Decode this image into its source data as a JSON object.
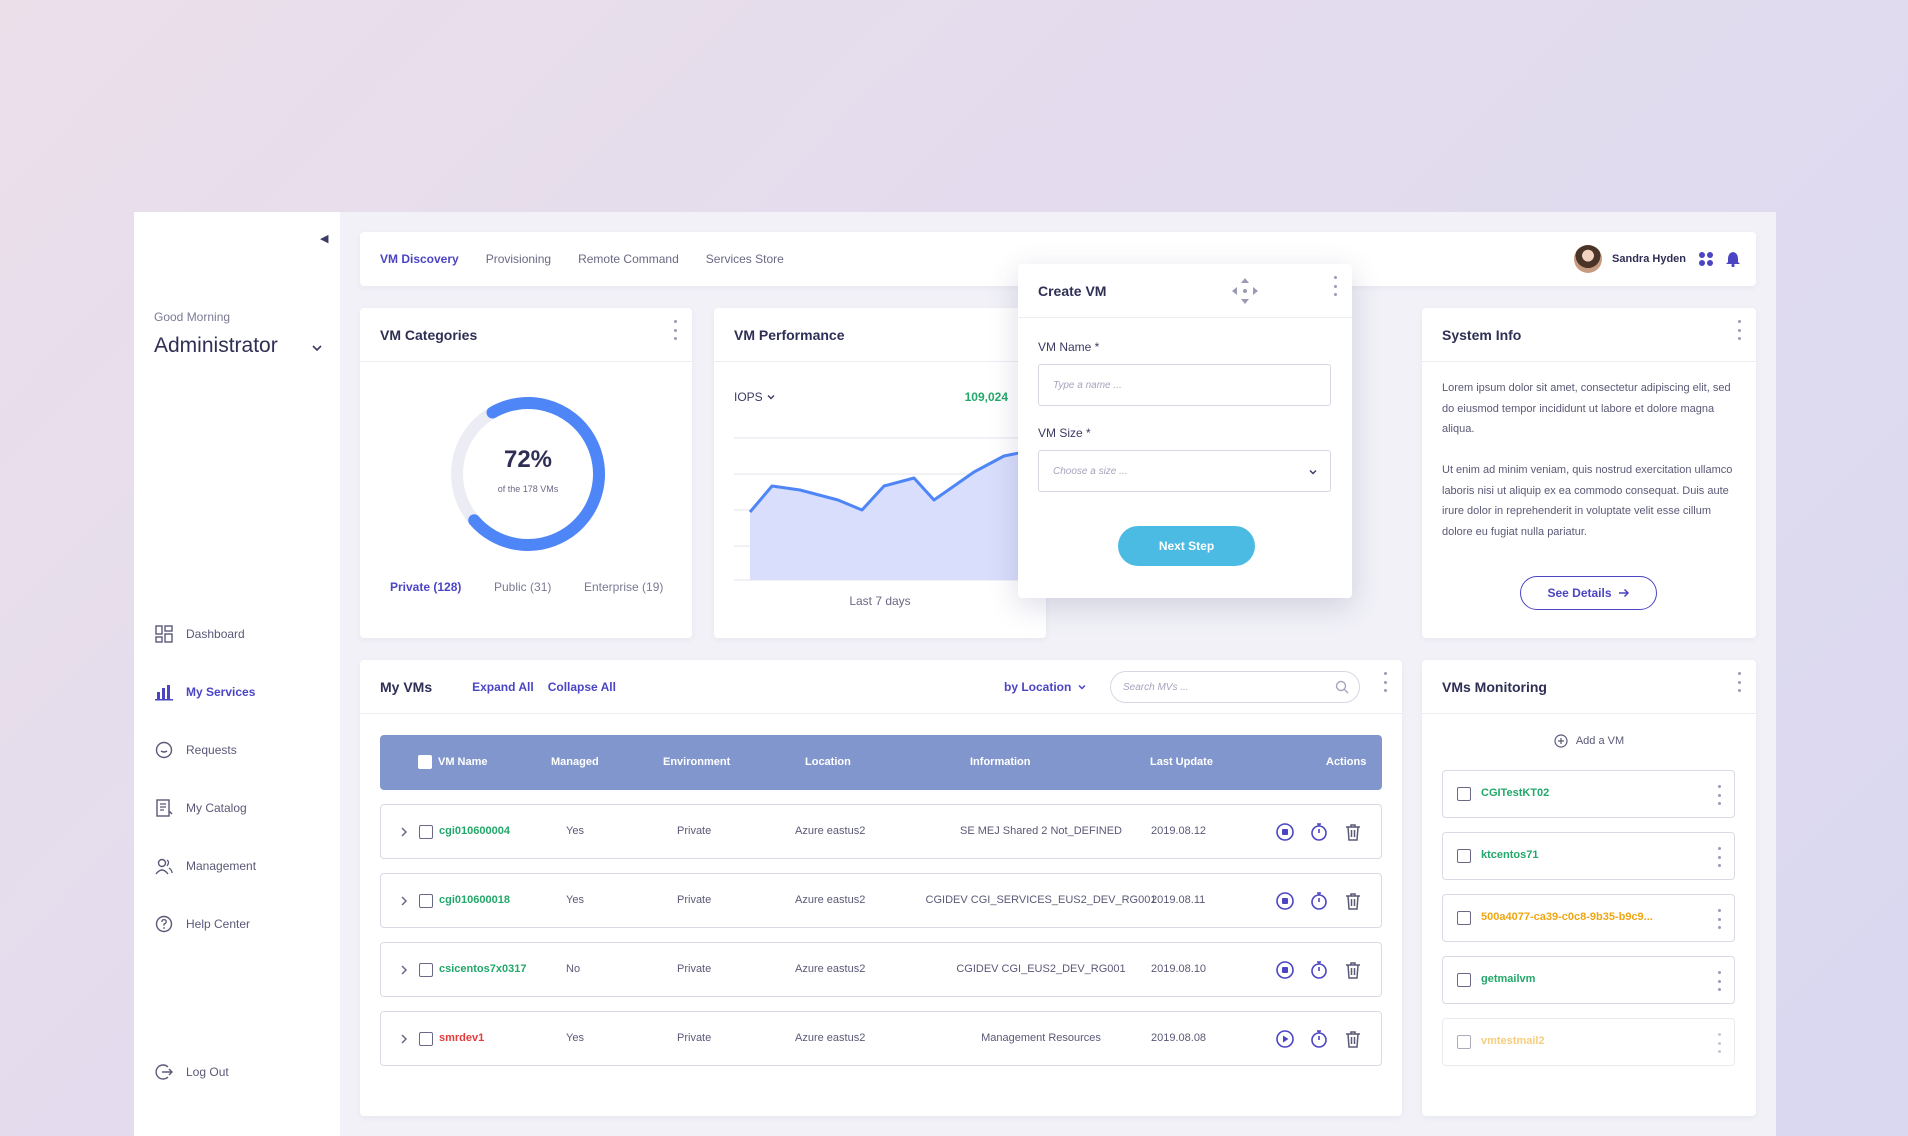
{
  "sidebar": {
    "greeting": "Good Morning",
    "user_role": "Administrator",
    "items": [
      {
        "label": "Dashboard",
        "icon": "dashboard-icon"
      },
      {
        "label": "My Services",
        "icon": "bar-chart-icon",
        "active": true
      },
      {
        "label": "Requests",
        "icon": "chat-bubble-icon"
      },
      {
        "label": "My Catalog",
        "icon": "catalog-icon"
      },
      {
        "label": "Management",
        "icon": "users-icon"
      },
      {
        "label": "Help Center",
        "icon": "help-circle-icon"
      }
    ],
    "logout_label": "Log Out"
  },
  "header": {
    "tabs": [
      {
        "label": "VM Discovery",
        "active": true
      },
      {
        "label": "Provisioning"
      },
      {
        "label": "Remote Command"
      },
      {
        "label": "Services Store"
      }
    ],
    "user_name": "Sandra Hyden"
  },
  "vm_categories": {
    "title": "VM Categories",
    "percent": "72%",
    "percent_value": 0.72,
    "subtitle": "of the 178 VMs",
    "legend": [
      {
        "label": "Private (128)",
        "active": true
      },
      {
        "label": "Public (31)"
      },
      {
        "label": "Enterprise (19)"
      }
    ]
  },
  "vm_performance": {
    "title": "VM Performance",
    "metric": "IOPS",
    "value": "109,024",
    "footer": "Last 7 days"
  },
  "create_vm": {
    "title": "Create VM",
    "name_label": "VM Name *",
    "name_placeholder": "Type a name ...",
    "size_label": "VM Size *",
    "size_placeholder": "Choose a size ...",
    "next_button": "Next Step"
  },
  "system_info": {
    "title": "System Info",
    "para1": "Lorem ipsum dolor sit amet, consectetur adipiscing elit, sed do eiusmod tempor incididunt ut labore et dolore magna aliqua.",
    "para2": "Ut enim ad minim veniam, quis nostrud exercitation ullamco laboris nisi ut aliquip ex ea commodo consequat. Duis aute irure dolor in reprehenderit in voluptate velit esse cillum dolore eu fugiat nulla pariatur.",
    "button": "See Details"
  },
  "my_vms": {
    "title": "My VMs",
    "expand_all": "Expand All",
    "collapse_all": "Collapse All",
    "group_by": "by Location",
    "search_placeholder": "Search MVs ...",
    "columns": [
      "VM Name",
      "Managed",
      "Environment",
      "Location",
      "Information",
      "Last Update",
      "Actions"
    ],
    "rows": [
      {
        "name": "cgi010600004",
        "name_color": "green",
        "managed": "Yes",
        "environment": "Private",
        "location": "Azure eastus2",
        "information": "SE MEJ Shared 2 Not_DEFINED",
        "last_update": "2019.08.12",
        "action_icon": "stop-icon"
      },
      {
        "name": "cgi010600018",
        "name_color": "green",
        "managed": "Yes",
        "environment": "Private",
        "location": "Azure eastus2",
        "information": "CGIDEV CGI_SERVICES_EUS2_DEV_RG001",
        "last_update": "2019.08.11",
        "action_icon": "stop-icon"
      },
      {
        "name": "csicentos7x0317",
        "name_color": "green",
        "managed": "No",
        "environment": "Private",
        "location": "Azure eastus2",
        "information": "CGIDEV CGI_EUS2_DEV_RG001",
        "last_update": "2019.08.10",
        "action_icon": "stop-icon"
      },
      {
        "name": "smrdev1",
        "name_color": "red",
        "managed": "Yes",
        "environment": "Private",
        "location": "Azure eastus2",
        "information": "Management Resources",
        "last_update": "2019.08.08",
        "action_icon": "play-icon"
      }
    ]
  },
  "monitoring": {
    "title": "VMs Monitoring",
    "add_label": "Add a VM",
    "items": [
      {
        "name": "CGITestKT02",
        "color": "green"
      },
      {
        "name": "ktcentos71",
        "color": "green"
      },
      {
        "name": "500a4077-ca39-c0c8-9b35-b9c9...",
        "color": "orange"
      },
      {
        "name": "getmailvm",
        "color": "green"
      },
      {
        "name": "vmtestmail2",
        "color": "orange",
        "faded": true
      }
    ]
  },
  "colors": {
    "accent": "#4b45c4",
    "donut": "#4f86f7",
    "green": "#22a86a",
    "orange": "#f0a512",
    "red": "#e33b3b",
    "table_header": "#8196cc",
    "button": "#4cbbe4"
  }
}
